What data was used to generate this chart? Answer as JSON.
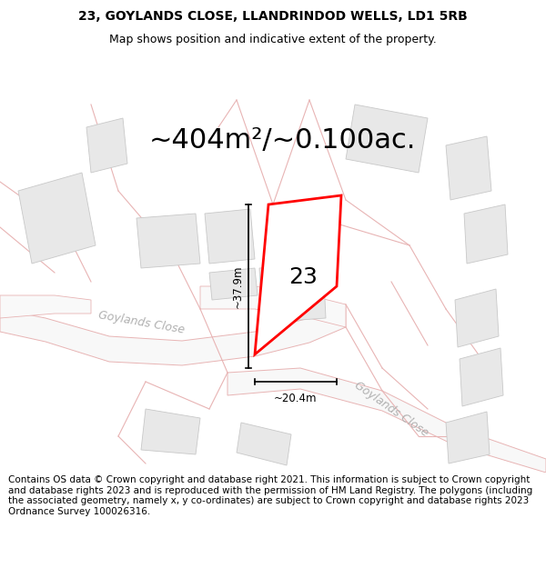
{
  "title_line1": "23, GOYLANDS CLOSE, LLANDRINDOD WELLS, LD1 5RB",
  "title_line2": "Map shows position and indicative extent of the property.",
  "area_text": "~404m²/~0.100ac.",
  "number_label": "23",
  "dim_width": "~20.4m",
  "dim_height": "~37.9m",
  "street_label1": "Goylands Close",
  "street_label2": "Goylands Close",
  "footer_text": "Contains OS data © Crown copyright and database right 2021. This information is subject to Crown copyright and database rights 2023 and is reproduced with the permission of HM Land Registry. The polygons (including the associated geometry, namely x, y co-ordinates) are subject to Crown copyright and database rights 2023 Ordnance Survey 100026316.",
  "bg_color": "#ffffff",
  "map_bg": "#ffffff",
  "plot_border_color": "red",
  "map_line_color": "#e8b4b4",
  "building_fill": "#e8e8e8",
  "building_stroke": "#c8c8c8",
  "title_fontsize": 10,
  "subtitle_fontsize": 9,
  "area_fontsize": 22,
  "footer_fontsize": 7.5
}
